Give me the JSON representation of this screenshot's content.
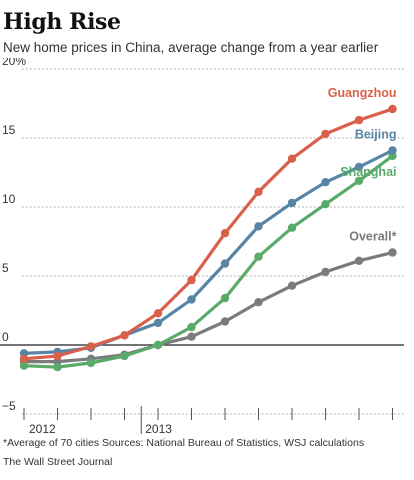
{
  "header": {
    "title": "High Rise",
    "subtitle": "New home prices in China, average change from a year earlier"
  },
  "footer": {
    "footnote": "*Average of 70 cities   Sources: National Bureau of Statistics, WSJ calculations",
    "credit": "The Wall Street Journal"
  },
  "colors": {
    "guangzhou": "#d9604a",
    "beijing": "#5685a6",
    "shanghai": "#5aaa6a",
    "overall": "#7b7b7b",
    "axis_text": "#333333",
    "grid": "#9a9a9a"
  },
  "chart_data": {
    "type": "line",
    "title": "High Rise",
    "subtitle": "New home prices in China, average change from a year earlier",
    "x": [
      "2012-10",
      "2012-11",
      "2012-12",
      "2013-01",
      "2013-02",
      "2013-03",
      "2013-04",
      "2013-05",
      "2013-06",
      "2013-07",
      "2013-08",
      "2013-09",
      "2013-10",
      "2013-11"
    ],
    "x_tick_labels": [
      "2012",
      "2013"
    ],
    "ylim": [
      -5,
      20
    ],
    "y_ticks": [
      -5,
      0,
      5,
      10,
      15,
      20
    ],
    "y_tick_labels": [
      "−5",
      "0",
      "5",
      "10",
      "15",
      "20%"
    ],
    "grid": "horizontal dotted",
    "legend": "direct labels at line ends",
    "series": [
      {
        "name": "Guangzhou",
        "color": "#d9604a",
        "values": [
          -1.0,
          -0.8,
          -0.1,
          0.7,
          2.3,
          4.7,
          8.1,
          11.1,
          13.5,
          15.3,
          16.3,
          17.1,
          null,
          null
        ]
      },
      {
        "name": "Beijing",
        "color": "#5685a6",
        "values": [
          -0.6,
          -0.5,
          -0.2,
          0.7,
          1.6,
          3.3,
          5.9,
          8.6,
          10.3,
          11.8,
          12.9,
          14.1,
          null,
          null
        ]
      },
      {
        "name": "Shanghai",
        "color": "#5aaa6a",
        "values": [
          -1.5,
          -1.6,
          -1.3,
          -0.8,
          0.0,
          1.3,
          3.4,
          6.4,
          8.5,
          10.2,
          11.9,
          13.7,
          null,
          null
        ]
      },
      {
        "name": "Overall*",
        "color": "#7b7b7b",
        "values": [
          -1.2,
          -1.2,
          -1.0,
          -0.7,
          0.0,
          0.6,
          1.7,
          3.1,
          4.3,
          5.3,
          6.1,
          6.7,
          null,
          null
        ]
      }
    ]
  }
}
